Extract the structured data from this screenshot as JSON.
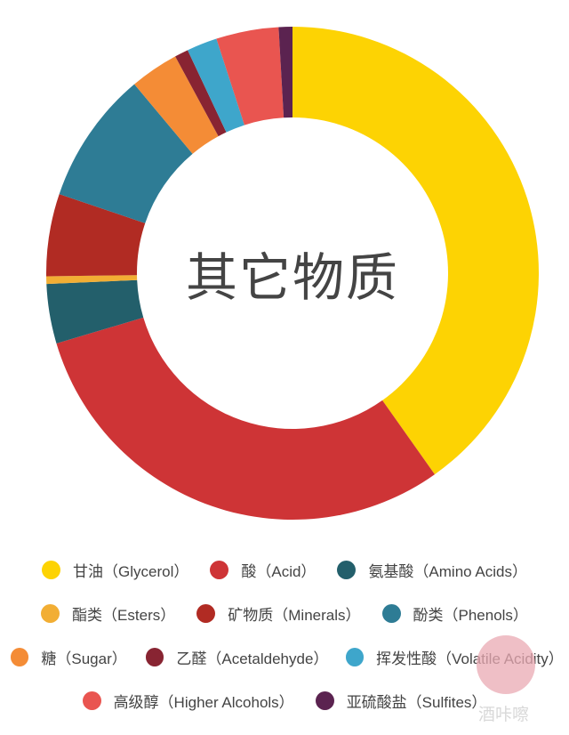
{
  "chart_data": {
    "type": "pie",
    "donut": true,
    "center_label": "其它物质",
    "legend_position": "bottom",
    "series": [
      {
        "name": "甘油（Glycerol）",
        "value": 40.2,
        "color": "#FDD303"
      },
      {
        "name": "酸（Acid）",
        "value": 30.2,
        "color": "#CE3436"
      },
      {
        "name": "氨基酸（Amino Acids）",
        "value": 3.9,
        "color": "#235F6B"
      },
      {
        "name": "酯类（Esters）",
        "value": 0.5,
        "color": "#F2AE34"
      },
      {
        "name": "矿物质（Minerals）",
        "value": 5.4,
        "color": "#B12B23"
      },
      {
        "name": "酚类（Phenols）",
        "value": 8.7,
        "color": "#2E7C95"
      },
      {
        "name": "糖（Sugar）",
        "value": 3.2,
        "color": "#F48C36"
      },
      {
        "name": "乙醛（Acetaldehyde）",
        "value": 0.9,
        "color": "#882432"
      },
      {
        "name": "挥发性酸（Volatile Acidity）",
        "value": 2.0,
        "color": "#3EA6CB"
      },
      {
        "name": "高级醇（Higher Alcohols）",
        "value": 4.1,
        "color": "#E95550"
      },
      {
        "name": "亚硫酸盐（Sulfites）",
        "value": 0.9,
        "color": "#5B2350"
      }
    ]
  },
  "watermark": "酒咔嚓"
}
